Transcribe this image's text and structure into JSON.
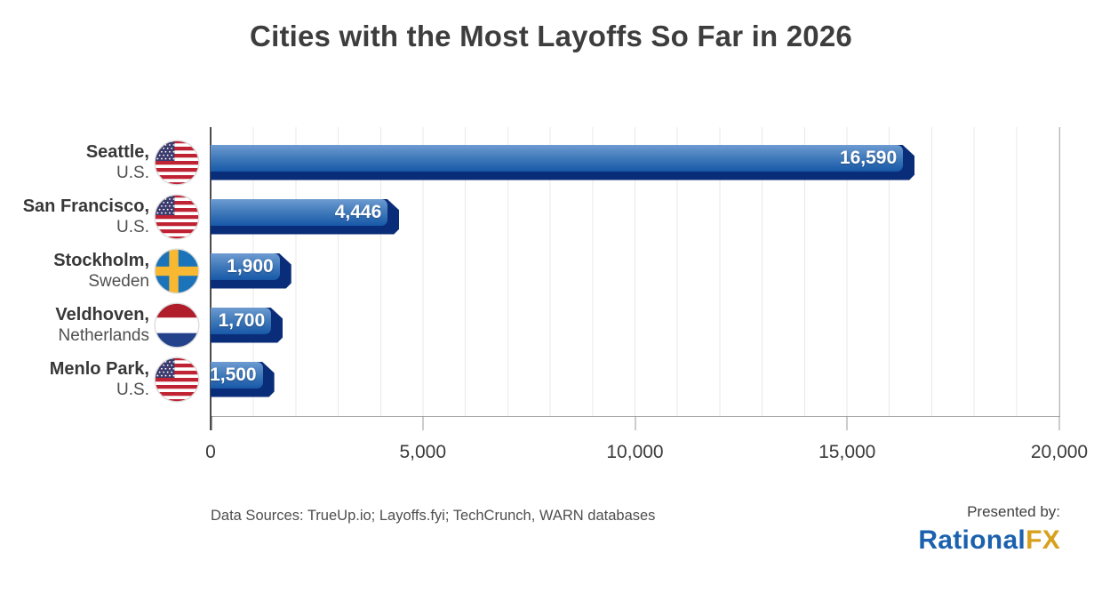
{
  "title": "Cities with the Most Layoffs So Far in 2026",
  "chart_data": {
    "type": "bar",
    "orientation": "horizontal",
    "title": "Cities with the Most Layoffs So Far in 2026",
    "categories": [
      "Seattle, U.S.",
      "San Francisco, U.S.",
      "Stockholm, Sweden",
      "Veldhoven, Netherlands",
      "Menlo Park, U.S."
    ],
    "values": [
      16590,
      4446,
      1900,
      1700,
      1500
    ],
    "rows": [
      {
        "city": "Seattle,",
        "country": "U.S.",
        "flag": "us",
        "value": 16590,
        "value_label": "16,590"
      },
      {
        "city": "San Francisco,",
        "country": "U.S.",
        "flag": "us",
        "value": 4446,
        "value_label": "4,446"
      },
      {
        "city": "Stockholm,",
        "country": "Sweden",
        "flag": "se",
        "value": 1900,
        "value_label": "1,900"
      },
      {
        "city": "Veldhoven,",
        "country": "Netherlands",
        "flag": "nl",
        "value": 1700,
        "value_label": "1,700"
      },
      {
        "city": "Menlo Park,",
        "country": "U.S.",
        "flag": "us",
        "value": 1500,
        "value_label": "1,500"
      }
    ],
    "xaxis": {
      "min": 0,
      "max": 20000,
      "minor_step": 1000,
      "major_ticks": [
        {
          "value": 0,
          "label": "0"
        },
        {
          "value": 5000,
          "label": "5,000"
        },
        {
          "value": 10000,
          "label": "10,000"
        },
        {
          "value": 15000,
          "label": "15,000"
        },
        {
          "value": 20000,
          "label": "20,000"
        }
      ]
    },
    "grid": "vertical minor gridlines every 1,000",
    "legend": "none",
    "value_labels": "inside bar, right-aligned, white bold"
  },
  "footer": {
    "sources": "Data Sources: TrueUp.io; Layoffs.fyi; TechCrunch, WARN databases",
    "presented_by": "Presented by:",
    "logo": {
      "part1": "Rational",
      "part2": "FX"
    }
  },
  "colors": {
    "title_text": "#3d3d3d",
    "bar_gradient_top": "#6d9bd1",
    "bar_gradient_mid": "#3f79ba",
    "bar_gradient_bottom": "#1758a8",
    "bar_3d_dark": "#0a2d7a",
    "value_label_text": "#ffffff",
    "logo_blue": "#1b61ae",
    "logo_gold": "#d7a11d",
    "us_flag_red": "#BF2333",
    "us_flag_blue": "#3C3B6E",
    "sweden_blue": "#1b74ba",
    "sweden_yellow": "#F8B832",
    "netherlands_red": "#B01D2B",
    "netherlands_blue": "#24418C"
  }
}
